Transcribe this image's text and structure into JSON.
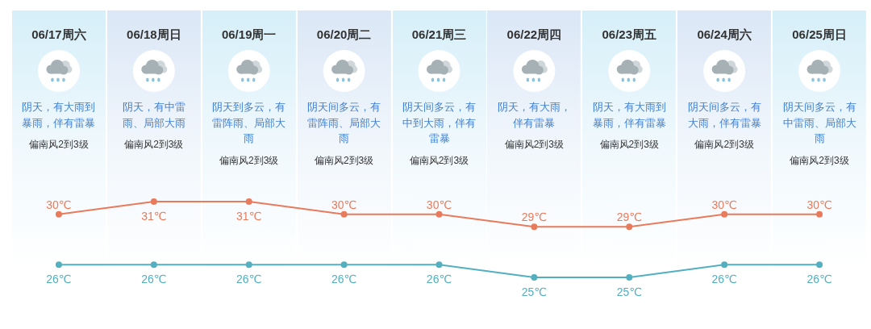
{
  "chart_data": {
    "type": "line",
    "categories": [
      "06/17周六",
      "06/18周日",
      "06/19周一",
      "06/20周二",
      "06/21周三",
      "06/22周四",
      "06/23周五",
      "06/24周六",
      "06/25周日"
    ],
    "series": [
      {
        "color": "#e97b5d",
        "values": [
          30,
          31,
          31,
          30,
          30,
          29,
          29,
          30,
          30
        ],
        "value_labels": [
          "30℃",
          "31℃",
          "31℃",
          "30℃",
          "30℃",
          "29℃",
          "29℃",
          "30℃",
          "30℃"
        ]
      },
      {
        "color": "#52b0c1",
        "values": [
          26,
          26,
          26,
          26,
          26,
          25,
          25,
          26,
          26
        ],
        "value_labels": [
          "26℃",
          "26℃",
          "26℃",
          "26℃",
          "26℃",
          "25℃",
          "25℃",
          "26℃",
          "26℃"
        ]
      }
    ],
    "marker": "circle",
    "annotations": [
      "阴天，有大雨到暴雨，伴有雷暴",
      "偏南风2到3级",
      "阴天，有中雷雨、局部大雨",
      "偏南风2到3级",
      "阴天到多云，有雷阵雨、局部大雨",
      "偏南风2到3级",
      "阴天间多云，有雷阵雨、局部大雨",
      "偏南风2到3级",
      "阴天间多云，有中到大雨，伴有雷暴",
      "偏南风2到3级",
      "阴天，有大雨，伴有雷暴",
      "偏南风2到3级",
      "阴天，有大雨到暴雨，伴有雷暴",
      "偏南风2到3级",
      "阴天间多云，有大雨，伴有雷暴",
      "偏南风2到3级",
      "阴天间多云，有中雷雨、局部大雨",
      "偏南风2到3级"
    ]
  }
}
